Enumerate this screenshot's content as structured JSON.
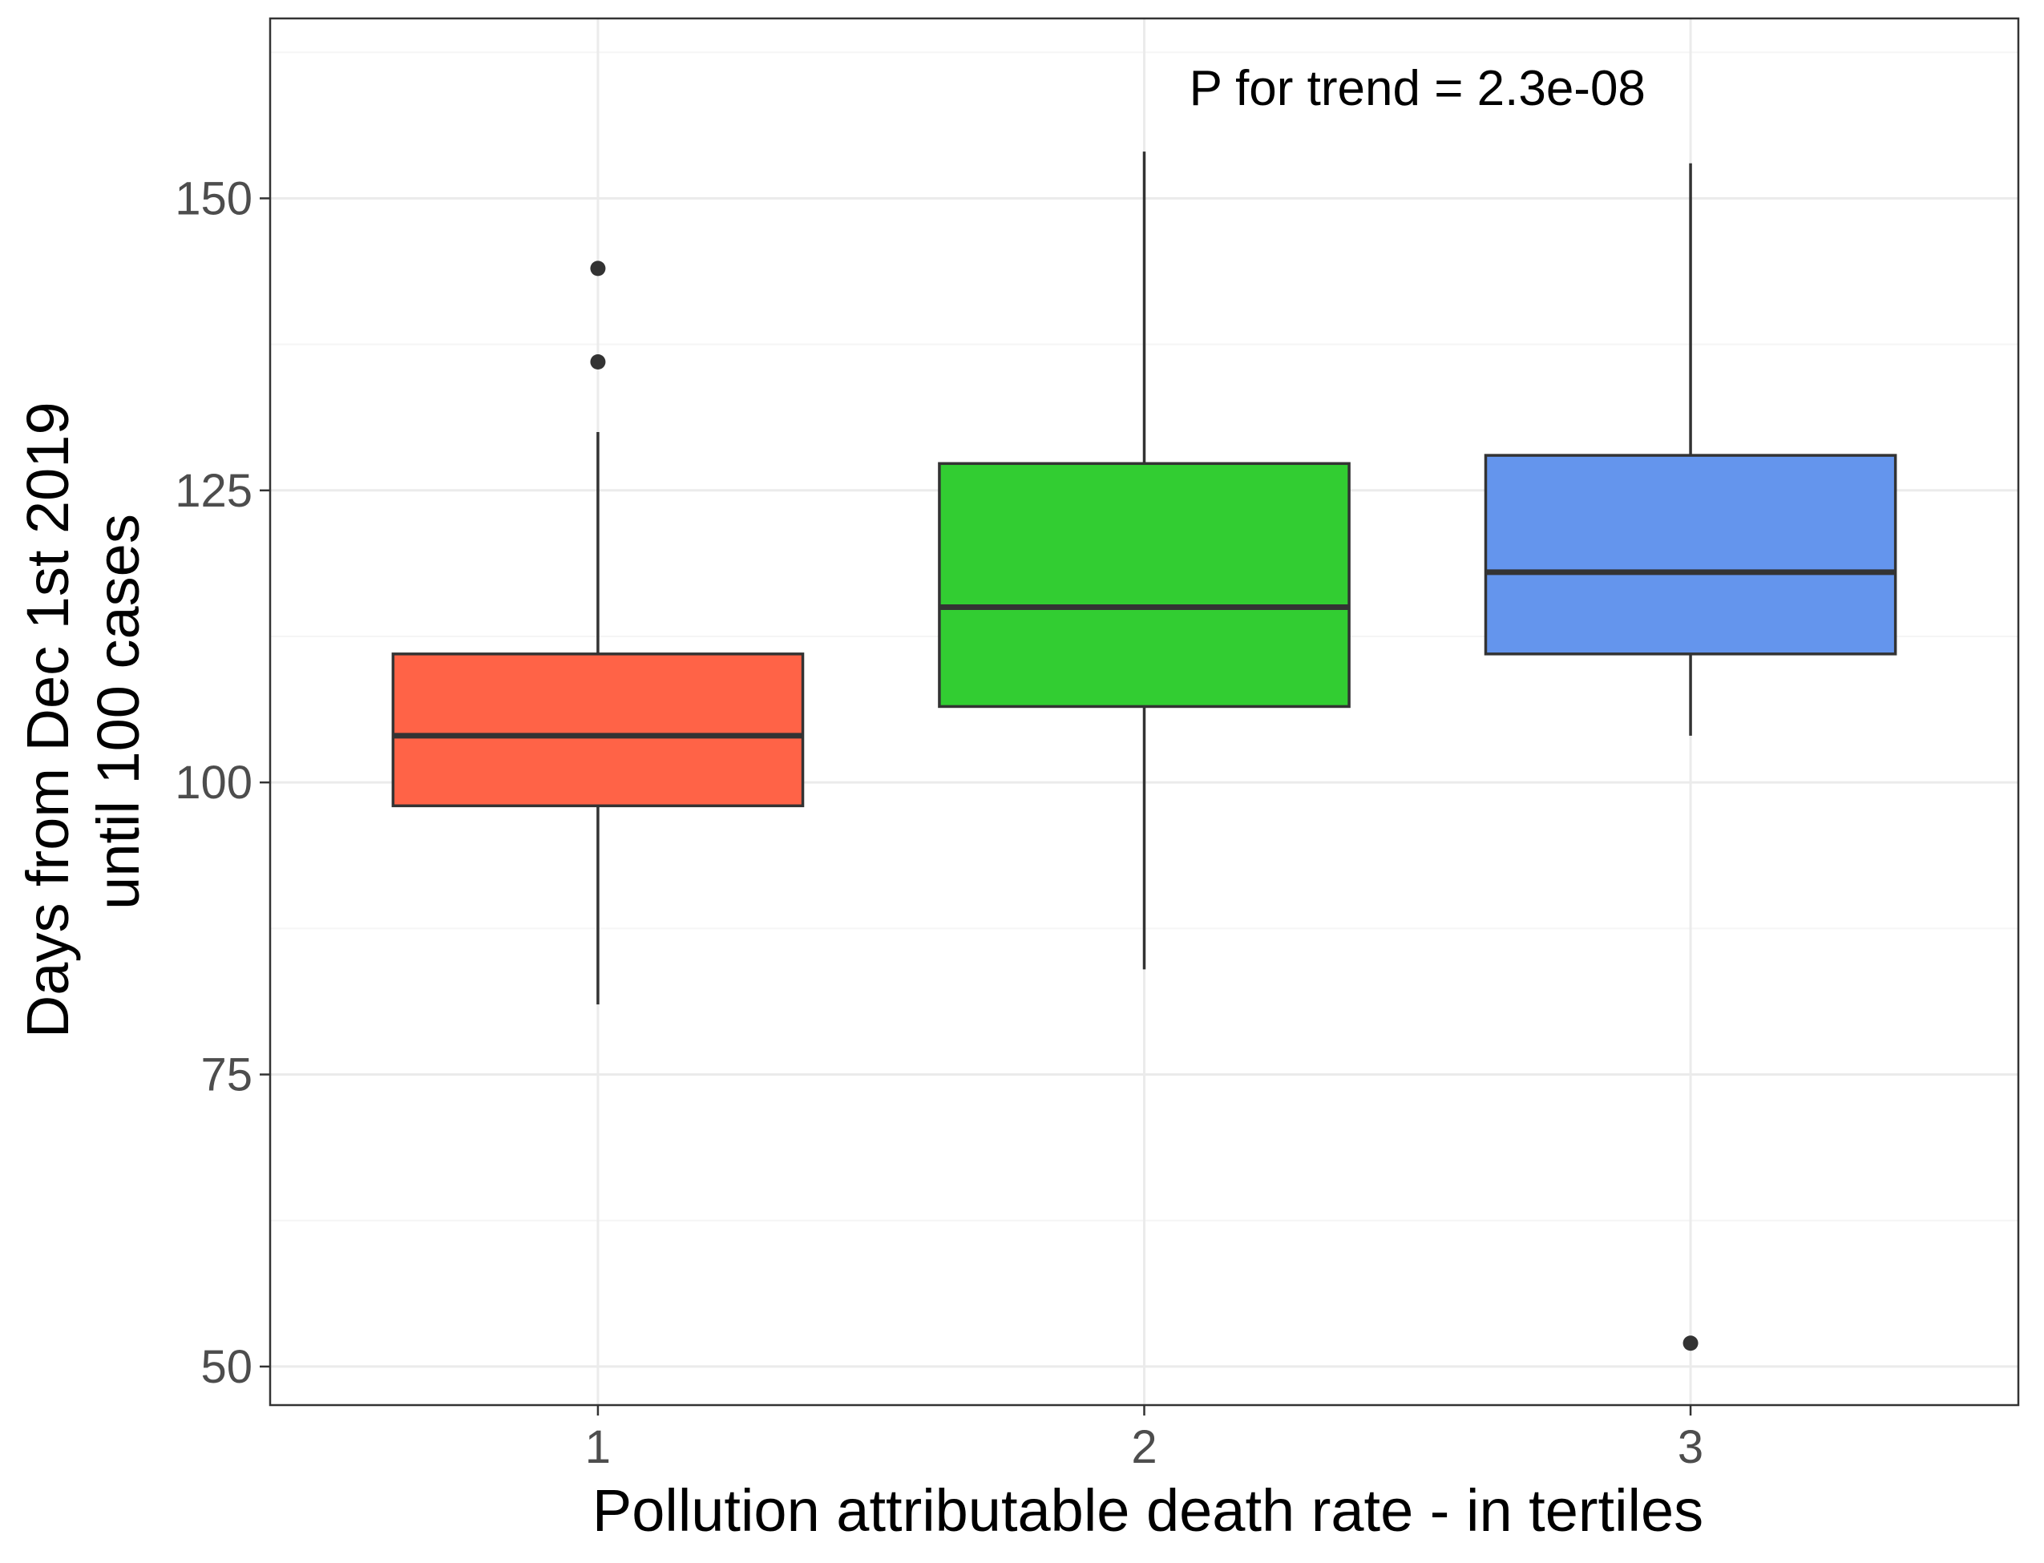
{
  "chart_data": {
    "type": "boxplot",
    "title": "",
    "xlabel": "Pollution attributable death rate - in tertiles",
    "ylabel_lines": [
      "Days from Dec 1st 2019",
      "until 100 cases"
    ],
    "categories": [
      "1",
      "2",
      "3"
    ],
    "y_ticks": [
      50,
      75,
      100,
      125,
      150
    ],
    "ylim": [
      46.7,
      165.4
    ],
    "grid": true,
    "legend": "none",
    "annotation": "P for trend = 2.3e-08",
    "annotation_position": {
      "category": 2.5,
      "y": 159.5
    },
    "boxes": [
      {
        "category": "1",
        "whisker_low": 81,
        "q1": 98,
        "median": 104,
        "q3": 111,
        "whisker_high": 130,
        "outliers": [
          136,
          144
        ],
        "fill": "#FF6347"
      },
      {
        "category": "2",
        "whisker_low": 84,
        "q1": 106.5,
        "median": 115,
        "q3": 127.3,
        "whisker_high": 154,
        "outliers": [],
        "fill": "#32CD32"
      },
      {
        "category": "3",
        "whisker_low": 104,
        "q1": 111,
        "median": 118,
        "q3": 128,
        "whisker_high": 153,
        "outliers": [
          52
        ],
        "fill": "#6495ED"
      }
    ],
    "colors": {
      "panel_border": "#333333",
      "grid_major": "#ebebeb",
      "grid_minor": "#f5f5f5",
      "box_line": "#333333"
    }
  }
}
